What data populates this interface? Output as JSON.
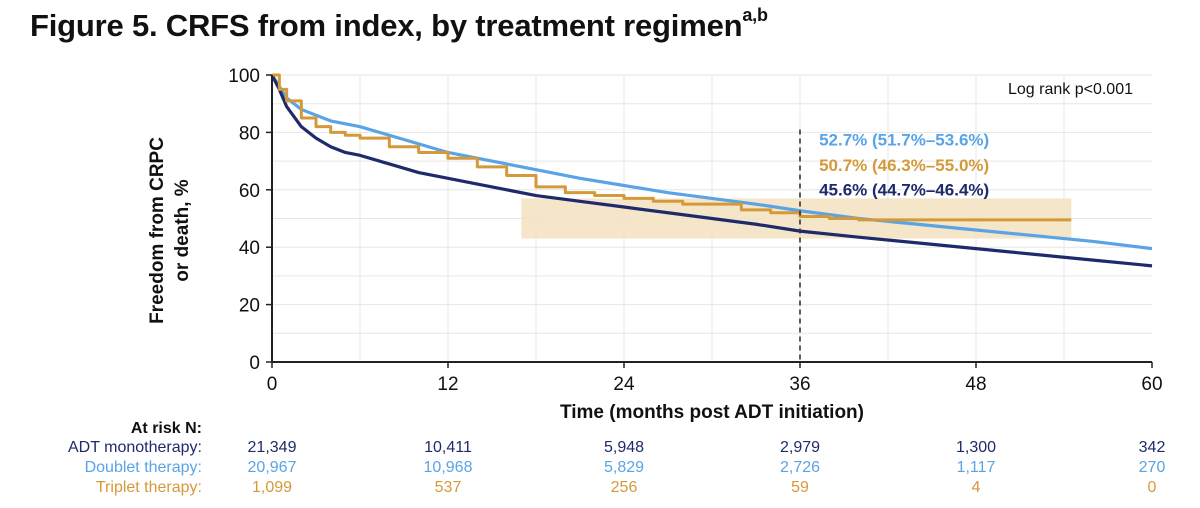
{
  "title": "Figure 5. CRFS from index, by treatment regimen",
  "title_superscript": "a,b",
  "colors": {
    "adt": "#1e2a6b",
    "doublet": "#5aa4e6",
    "triplet": "#d49a3a",
    "triplet_ci": "#f3e2c0",
    "grid": "#e6e6e6"
  },
  "chart_data": {
    "type": "line",
    "xlabel": "Time (months post ADT initiation)",
    "ylabel_line1": "Freedom from CRPC",
    "ylabel_line2": "or death, %",
    "xlim": [
      0,
      60
    ],
    "ylim": [
      0,
      100
    ],
    "xticks": [
      0,
      12,
      24,
      36,
      48,
      60
    ],
    "yticks": [
      0,
      20,
      40,
      60,
      80,
      100
    ],
    "annotation": "Log rank p<0.001",
    "reference_line_x": 36,
    "series": [
      {
        "name": "ADT monotherapy",
        "color_key": "adt",
        "points": [
          [
            0,
            100
          ],
          [
            0.5,
            95
          ],
          [
            1,
            89
          ],
          [
            2,
            82
          ],
          [
            3,
            78
          ],
          [
            4,
            75
          ],
          [
            5,
            73
          ],
          [
            6,
            72
          ],
          [
            8,
            69
          ],
          [
            10,
            66
          ],
          [
            12,
            64
          ],
          [
            15,
            61
          ],
          [
            18,
            58
          ],
          [
            21,
            56
          ],
          [
            24,
            54
          ],
          [
            27,
            52
          ],
          [
            30,
            50
          ],
          [
            33,
            48
          ],
          [
            36,
            45.6
          ],
          [
            40,
            43.5
          ],
          [
            44,
            41.5
          ],
          [
            48,
            39.5
          ],
          [
            52,
            37.5
          ],
          [
            56,
            35.5
          ],
          [
            60,
            33.5
          ]
        ]
      },
      {
        "name": "Doublet therapy",
        "color_key": "doublet",
        "points": [
          [
            0,
            100
          ],
          [
            0.5,
            96
          ],
          [
            1,
            92
          ],
          [
            2,
            88
          ],
          [
            3,
            86
          ],
          [
            4,
            84
          ],
          [
            5,
            83
          ],
          [
            6,
            82
          ],
          [
            8,
            79
          ],
          [
            10,
            76
          ],
          [
            12,
            73
          ],
          [
            15,
            70
          ],
          [
            18,
            67
          ],
          [
            21,
            64
          ],
          [
            24,
            61.5
          ],
          [
            27,
            59
          ],
          [
            30,
            57
          ],
          [
            33,
            55
          ],
          [
            36,
            52.7
          ],
          [
            40,
            50
          ],
          [
            44,
            48
          ],
          [
            48,
            46
          ],
          [
            52,
            44
          ],
          [
            56,
            42
          ],
          [
            60,
            39.5
          ]
        ]
      },
      {
        "name": "Triplet therapy",
        "color_key": "triplet",
        "points": [
          [
            0,
            100
          ],
          [
            0.5,
            95
          ],
          [
            1,
            91
          ],
          [
            2,
            85
          ],
          [
            3,
            82
          ],
          [
            4,
            80
          ],
          [
            5,
            79
          ],
          [
            6,
            78
          ],
          [
            8,
            75
          ],
          [
            10,
            73
          ],
          [
            12,
            71
          ],
          [
            14,
            68
          ],
          [
            16,
            65
          ],
          [
            18,
            61
          ],
          [
            20,
            59
          ],
          [
            22,
            58
          ],
          [
            24,
            57
          ],
          [
            26,
            56
          ],
          [
            28,
            55
          ],
          [
            30,
            55
          ],
          [
            32,
            53
          ],
          [
            34,
            52
          ],
          [
            36,
            50.7
          ],
          [
            38,
            50
          ],
          [
            40,
            49.5
          ],
          [
            44,
            49.5
          ],
          [
            48,
            49.5
          ],
          [
            50,
            49.5
          ],
          [
            54.5,
            49.5
          ]
        ],
        "ci": {
          "x_start": 17,
          "x_end": 54.5,
          "upper": 57,
          "lower": 43
        }
      }
    ],
    "labels_at_36": [
      {
        "text": "52.7% (51.7%–53.6%)",
        "color_key": "doublet",
        "y_value": 75.5
      },
      {
        "text": "50.7% (46.3%–55.0%)",
        "color_key": "triplet",
        "y_value": 66.5
      },
      {
        "text": "45.6% (44.7%–46.4%)",
        "color_key": "adt",
        "y_value": 58
      }
    ],
    "at_risk": {
      "title": "At risk N:",
      "times": [
        0,
        12,
        24,
        36,
        48,
        60
      ],
      "rows": [
        {
          "name": "ADT monotherapy:",
          "color_key": "adt",
          "values": [
            "21,349",
            "10,411",
            "5,948",
            "2,979",
            "1,300",
            "342"
          ]
        },
        {
          "name": "Doublet therapy:",
          "color_key": "doublet",
          "values": [
            "20,967",
            "10,968",
            "5,829",
            "2,726",
            "1,117",
            "270"
          ]
        },
        {
          "name": "Triplet therapy:",
          "color_key": "triplet",
          "values": [
            "1,099",
            "537",
            "256",
            "59",
            "4",
            "0"
          ]
        }
      ]
    }
  }
}
